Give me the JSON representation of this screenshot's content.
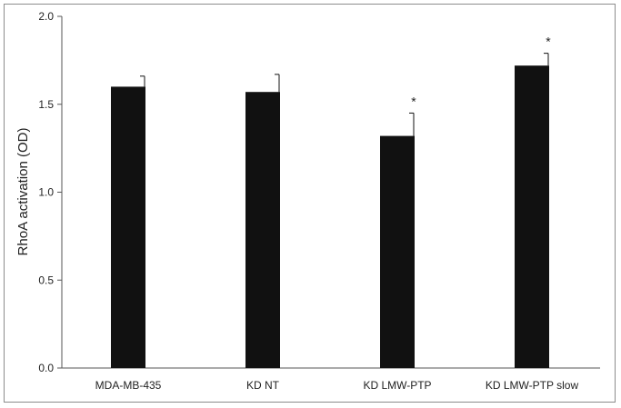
{
  "chart_data": {
    "type": "bar",
    "categories": [
      "MDA-MB-435",
      "KD NT",
      "KD LMW-PTP",
      "KD LMW-PTP slow"
    ],
    "values": [
      1.6,
      1.57,
      1.32,
      1.72
    ],
    "errors": [
      0.06,
      0.1,
      0.13,
      0.07
    ],
    "significance": [
      "",
      "",
      "*",
      "*"
    ],
    "title": "",
    "xlabel": "",
    "ylabel": "RhoA activation (OD)",
    "ylim": [
      0,
      2.0
    ],
    "yticks": [
      "0.0",
      "0.5",
      "1.0",
      "1.5",
      "2.0"
    ],
    "grid": false,
    "legend": "none",
    "bar_color": "#111111"
  }
}
